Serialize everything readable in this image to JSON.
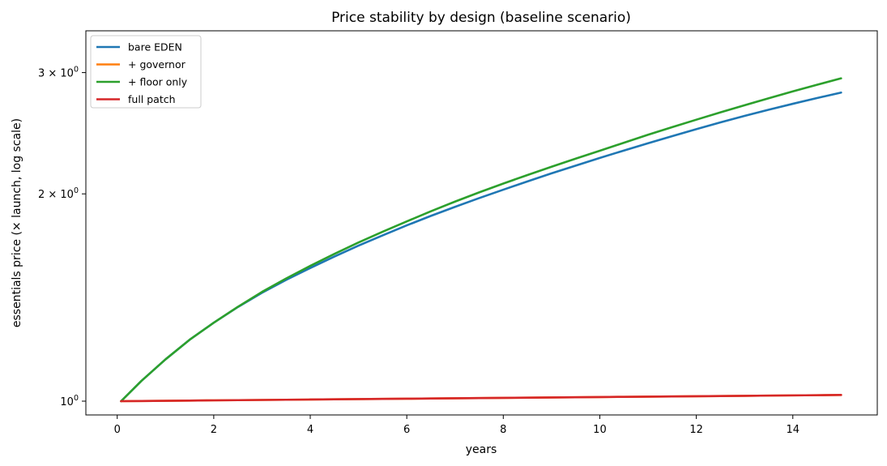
{
  "chart_data": {
    "type": "line",
    "title": "Price stability by design (baseline scenario)",
    "xlabel": "years",
    "ylabel": "essentials price (× launch, log scale)",
    "xlim": [
      -0.65,
      15.75
    ],
    "ylim": [
      0.955,
      3.45
    ],
    "yscale": "log",
    "xticks": [
      0,
      2,
      4,
      6,
      8,
      10,
      12,
      14
    ],
    "xtick_labels": [
      "0",
      "2",
      "4",
      "6",
      "8",
      "10",
      "12",
      "14"
    ],
    "yticks": [
      {
        "value": 1,
        "base": "10",
        "exp": "0"
      },
      {
        "value": 2,
        "coef": "2",
        "base": "10",
        "exp": "0"
      },
      {
        "value": 3,
        "coef": "3",
        "base": "10",
        "exp": "0"
      }
    ],
    "grid": false,
    "legend_position": "upper-left",
    "x": [
      0.08,
      0.5,
      1,
      1.5,
      2,
      2.5,
      3,
      3.5,
      4,
      4.5,
      5,
      5.5,
      6,
      6.5,
      7,
      7.5,
      8,
      8.5,
      9,
      9.5,
      10,
      10.5,
      11,
      11.5,
      12,
      12.5,
      13,
      13.5,
      14,
      14.5,
      15
    ],
    "series": [
      {
        "name": "bare EDEN",
        "color": "#1f77b4",
        "values": [
          1.0,
          1.07,
          1.15,
          1.228,
          1.3,
          1.37,
          1.437,
          1.5,
          1.561,
          1.622,
          1.682,
          1.741,
          1.8,
          1.858,
          1.915,
          1.972,
          2.028,
          2.085,
          2.142,
          2.198,
          2.255,
          2.312,
          2.369,
          2.426,
          2.483,
          2.54,
          2.596,
          2.65,
          2.703,
          2.755,
          2.806
        ]
      },
      {
        "name": "+ governor",
        "color": "#ff7f0e",
        "values": [
          1.0,
          1.0006,
          1.0013,
          1.002,
          1.0027,
          1.0034,
          1.0041,
          1.0048,
          1.0055,
          1.0062,
          1.0069,
          1.0076,
          1.0083,
          1.009,
          1.0097,
          1.0104,
          1.0111,
          1.0118,
          1.0125,
          1.0132,
          1.0139,
          1.0146,
          1.0153,
          1.016,
          1.0167,
          1.0174,
          1.0181,
          1.0188,
          1.0195,
          1.0202,
          1.021
        ]
      },
      {
        "name": "+ floor only",
        "color": "#2ca02c",
        "values": [
          1.0,
          1.07,
          1.15,
          1.228,
          1.3,
          1.371,
          1.441,
          1.507,
          1.572,
          1.636,
          1.7,
          1.762,
          1.824,
          1.887,
          1.949,
          2.01,
          2.07,
          2.13,
          2.19,
          2.25,
          2.31,
          2.373,
          2.437,
          2.5,
          2.563,
          2.627,
          2.69,
          2.753,
          2.817,
          2.88,
          2.943
        ]
      },
      {
        "name": "full patch",
        "color": "#d62728",
        "values": [
          1.0,
          1.0006,
          1.0013,
          1.002,
          1.0027,
          1.0034,
          1.0041,
          1.0048,
          1.0055,
          1.0062,
          1.0069,
          1.0076,
          1.0083,
          1.009,
          1.0097,
          1.0104,
          1.0111,
          1.0118,
          1.0125,
          1.0132,
          1.0139,
          1.0146,
          1.0153,
          1.016,
          1.0167,
          1.0174,
          1.0181,
          1.0188,
          1.0195,
          1.0202,
          1.021
        ]
      }
    ]
  }
}
